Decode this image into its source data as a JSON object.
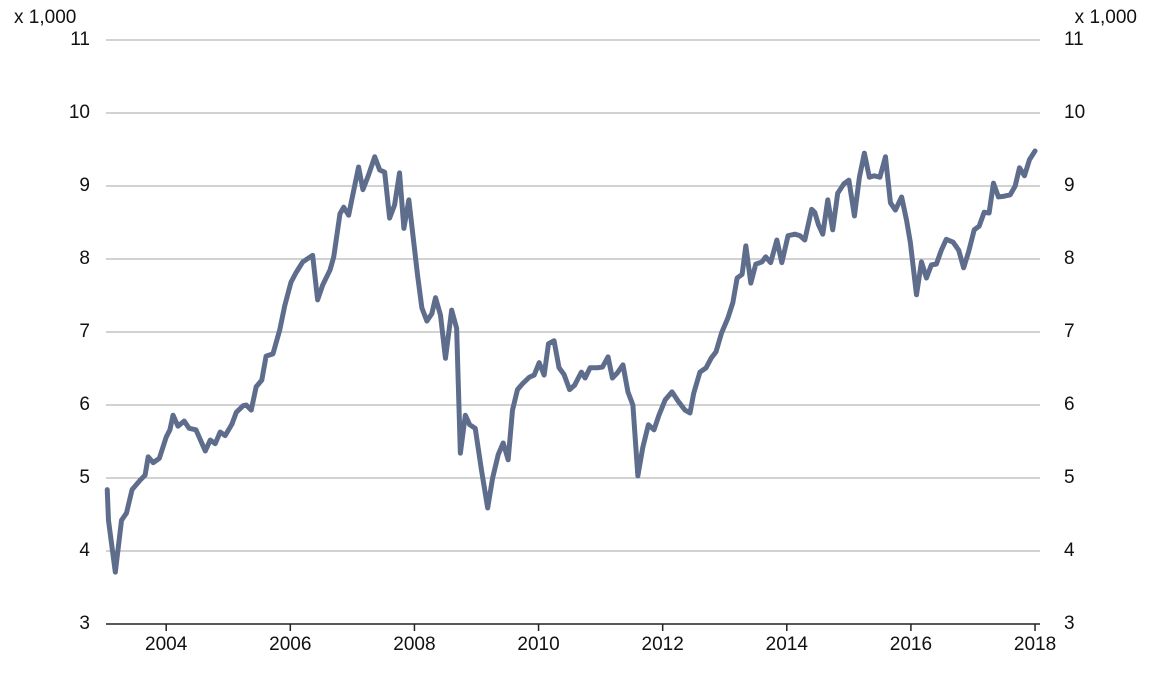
{
  "chart_data": {
    "type": "line",
    "annotations": [
      "x 1,000",
      "x 1,000"
    ],
    "x": [
      2003.05,
      2003.07,
      2003.18,
      2003.28,
      2003.36,
      2003.45,
      2003.58,
      2003.66,
      2003.71,
      2003.79,
      2003.89,
      2004.0,
      2004.06,
      2004.11,
      2004.19,
      2004.29,
      2004.37,
      2004.48,
      2004.63,
      2004.71,
      2004.79,
      2004.87,
      2004.95,
      2005.06,
      2005.13,
      2005.24,
      2005.29,
      2005.37,
      2005.45,
      2005.54,
      2005.61,
      2005.72,
      2005.83,
      2005.91,
      2006.01,
      2006.09,
      2006.2,
      2006.36,
      2006.44,
      2006.52,
      2006.64,
      2006.7,
      2006.8,
      2006.86,
      2006.94,
      2006.99,
      2007.1,
      2007.17,
      2007.26,
      2007.36,
      2007.44,
      2007.52,
      2007.6,
      2007.68,
      2007.76,
      2007.83,
      2007.91,
      2007.99,
      2008.05,
      2008.12,
      2008.2,
      2008.28,
      2008.34,
      2008.42,
      2008.5,
      2008.6,
      2008.68,
      2008.74,
      2008.82,
      2008.89,
      2008.98,
      2009.08,
      2009.18,
      2009.26,
      2009.35,
      2009.43,
      2009.51,
      2009.58,
      2009.66,
      2009.74,
      2009.85,
      2009.93,
      2010.01,
      2010.09,
      2010.16,
      2010.25,
      2010.33,
      2010.41,
      2010.5,
      2010.58,
      2010.69,
      2010.75,
      2010.83,
      2010.95,
      2011.03,
      2011.12,
      2011.19,
      2011.27,
      2011.36,
      2011.44,
      2011.52,
      2011.6,
      2011.68,
      2011.77,
      2011.86,
      2011.94,
      2012.04,
      2012.15,
      2012.26,
      2012.36,
      2012.44,
      2012.5,
      2012.6,
      2012.7,
      2012.78,
      2012.86,
      2012.95,
      2013.05,
      2013.13,
      2013.2,
      2013.28,
      2013.34,
      2013.42,
      2013.5,
      2013.6,
      2013.66,
      2013.74,
      2013.84,
      2013.92,
      2014.02,
      2014.13,
      2014.21,
      2014.29,
      2014.4,
      2014.45,
      2014.51,
      2014.58,
      2014.66,
      2014.74,
      2014.82,
      2014.92,
      2015.0,
      2015.09,
      2015.17,
      2015.25,
      2015.33,
      2015.41,
      2015.5,
      2015.59,
      2015.67,
      2015.75,
      2015.85,
      2015.93,
      2015.99,
      2016.09,
      2016.17,
      2016.25,
      2016.33,
      2016.41,
      2016.49,
      2016.57,
      2016.68,
      2016.77,
      2016.85,
      2016.93,
      2017.02,
      2017.1,
      2017.18,
      2017.26,
      2017.33,
      2017.41,
      2017.5,
      2017.6,
      2017.68,
      2017.75,
      2017.83,
      2017.91,
      2018.0
    ],
    "series": [
      {
        "color": "#5f6d8c",
        "values": [
          4.84,
          4.42,
          3.71,
          4.42,
          4.52,
          4.84,
          4.97,
          5.04,
          5.29,
          5.21,
          5.27,
          5.56,
          5.66,
          5.86,
          5.71,
          5.78,
          5.68,
          5.66,
          5.37,
          5.52,
          5.47,
          5.63,
          5.58,
          5.74,
          5.9,
          5.99,
          6.0,
          5.93,
          6.25,
          6.34,
          6.67,
          6.7,
          7.03,
          7.36,
          7.68,
          7.81,
          7.96,
          8.05,
          7.44,
          7.64,
          7.85,
          8.03,
          8.62,
          8.71,
          8.6,
          8.81,
          9.26,
          8.95,
          9.15,
          9.4,
          9.22,
          9.19,
          8.56,
          8.74,
          9.18,
          8.42,
          8.81,
          8.22,
          7.78,
          7.33,
          7.15,
          7.25,
          7.47,
          7.23,
          6.64,
          7.3,
          7.05,
          5.34,
          5.86,
          5.73,
          5.68,
          5.11,
          4.59,
          5.0,
          5.32,
          5.48,
          5.25,
          5.93,
          6.21,
          6.29,
          6.38,
          6.41,
          6.58,
          6.41,
          6.84,
          6.88,
          6.51,
          6.42,
          6.21,
          6.27,
          6.45,
          6.37,
          6.51,
          6.51,
          6.52,
          6.66,
          6.37,
          6.44,
          6.55,
          6.18,
          6.0,
          5.03,
          5.42,
          5.73,
          5.66,
          5.86,
          6.07,
          6.18,
          6.04,
          5.93,
          5.89,
          6.16,
          6.45,
          6.51,
          6.64,
          6.73,
          6.99,
          7.19,
          7.4,
          7.74,
          7.79,
          8.18,
          7.67,
          7.93,
          7.96,
          8.03,
          7.95,
          8.26,
          7.95,
          8.32,
          8.34,
          8.32,
          8.26,
          8.68,
          8.64,
          8.47,
          8.34,
          8.81,
          8.4,
          8.9,
          9.03,
          9.08,
          8.59,
          9.12,
          9.45,
          9.12,
          9.14,
          9.12,
          9.4,
          8.77,
          8.67,
          8.85,
          8.53,
          8.23,
          7.51,
          7.96,
          7.74,
          7.92,
          7.93,
          8.12,
          8.27,
          8.23,
          8.12,
          7.88,
          8.1,
          8.4,
          8.45,
          8.64,
          8.63,
          9.04,
          8.85,
          8.86,
          8.88,
          9.0,
          9.25,
          9.14,
          9.36,
          9.48
        ]
      }
    ],
    "xlim": [
      2003.03,
      2018.08
    ],
    "xticks": [
      2004,
      2006,
      2008,
      2010,
      2012,
      2014,
      2016,
      2018
    ],
    "ylim": [
      3,
      11
    ],
    "yticks": [
      3,
      4,
      5,
      6,
      7,
      8,
      9,
      10,
      11
    ],
    "y2lim": [
      3,
      11
    ],
    "y2ticks": [
      3,
      4,
      5,
      6,
      7,
      8,
      9,
      10,
      11
    ],
    "grid": true
  }
}
